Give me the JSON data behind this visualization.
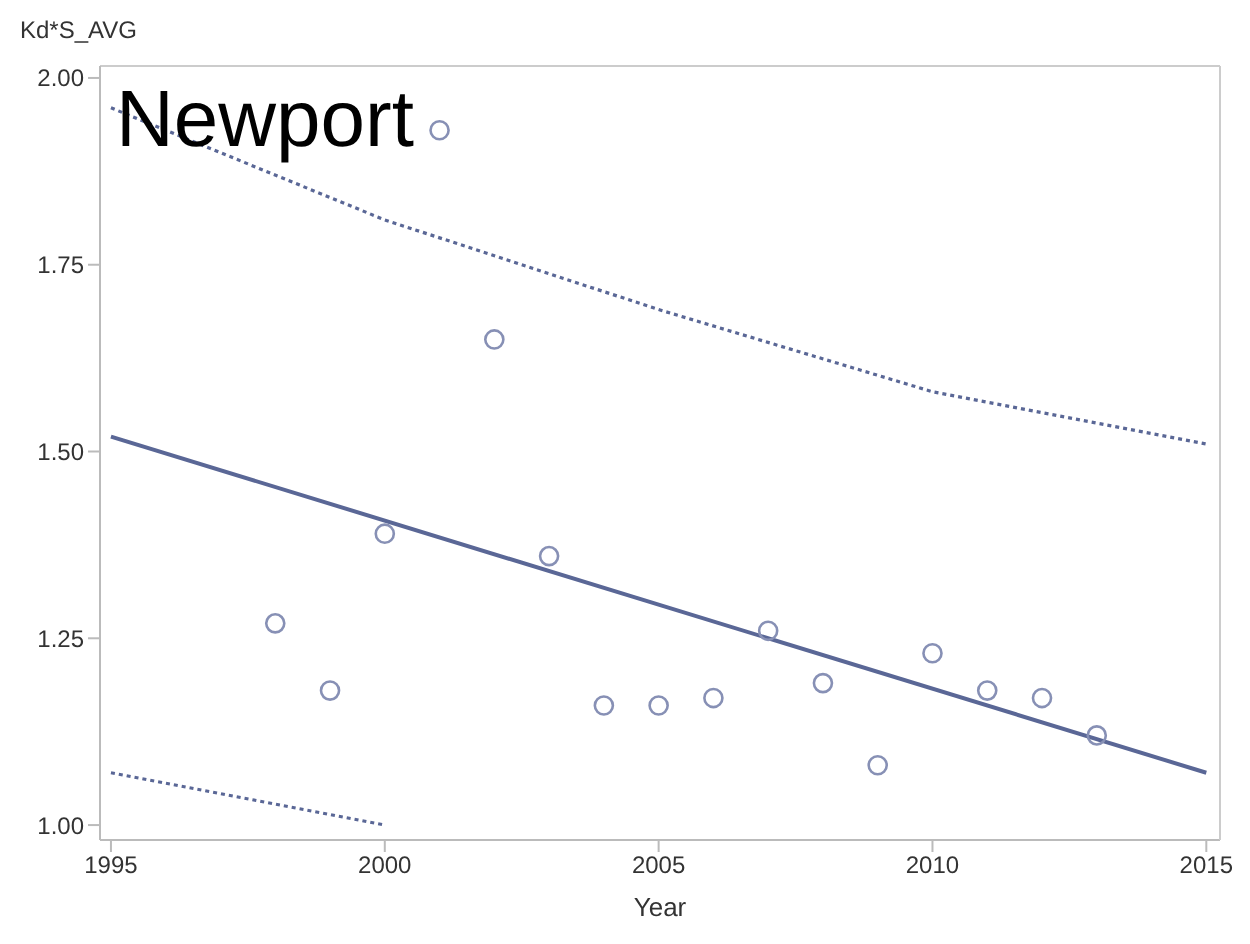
{
  "chart_data": {
    "type": "scatter",
    "title": "Newport",
    "xlabel": "Year",
    "ylabel": "Kd*S_AVG",
    "xlim": [
      1994.8,
      2015.25
    ],
    "xticks": [
      1995,
      2000,
      2005,
      2010,
      2015
    ],
    "ylim": [
      0.98,
      2.016
    ],
    "yticks": [
      {
        "value": 1,
        "label": "1.00"
      },
      {
        "value": 1.25,
        "label": "1.25"
      },
      {
        "value": 1.5,
        "label": "1.50"
      },
      {
        "value": 1.75,
        "label": "1.75"
      },
      {
        "value": 2,
        "label": "2.00"
      }
    ],
    "legend": false,
    "series": [
      {
        "marker": "circle",
        "color": "#8790b5",
        "x": [
          1998,
          1999,
          2000,
          2001,
          2002,
          2003,
          2004,
          2005,
          2006,
          2007,
          2008,
          2009,
          2010,
          2011,
          2012,
          2013
        ],
        "values": [
          1.27,
          1.18,
          1.39,
          1.93,
          1.65,
          1.36,
          1.16,
          1.16,
          1.17,
          1.26,
          1.19,
          1.08,
          1.23,
          1.18,
          1.17,
          1.12
        ]
      },
      {
        "type": "line",
        "marker": "none",
        "line_style": "solid",
        "color": "#5a6796",
        "x": [
          1995,
          2015
        ],
        "values": [
          1.52,
          1.07
        ]
      },
      {
        "type": "line",
        "marker": "none",
        "line_style": "dotted",
        "color": "#5a6796",
        "x": [
          1995,
          2000,
          2005,
          2010,
          2015
        ],
        "values": [
          1.96,
          1.81,
          1.69,
          1.58,
          1.51
        ]
      },
      {
        "type": "line",
        "marker": "none",
        "line_style": "dotted",
        "color": "#5a6796",
        "x": [
          1995,
          2000
        ],
        "values": [
          1.07,
          1.0
        ]
      }
    ]
  }
}
